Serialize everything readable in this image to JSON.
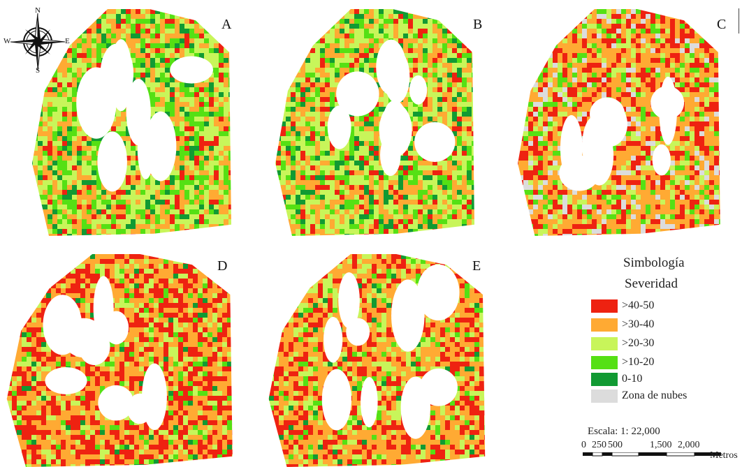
{
  "maps": [
    {
      "id": "A",
      "label": "A",
      "mix": {
        "red": 0.1,
        "orange": 0.3,
        "lime": 0.3,
        "green": 0.2,
        "dark": 0.1,
        "cloud": 0
      }
    },
    {
      "id": "B",
      "label": "B",
      "mix": {
        "red": 0.1,
        "orange": 0.3,
        "lime": 0.35,
        "green": 0.15,
        "dark": 0.1,
        "cloud": 0
      }
    },
    {
      "id": "C",
      "label": "C",
      "mix": {
        "red": 0.25,
        "orange": 0.4,
        "lime": 0.15,
        "green": 0.1,
        "dark": 0.0,
        "cloud": 0.1
      }
    },
    {
      "id": "D",
      "label": "D",
      "mix": {
        "red": 0.35,
        "orange": 0.4,
        "lime": 0.15,
        "green": 0.07,
        "dark": 0.03,
        "cloud": 0
      }
    },
    {
      "id": "E",
      "label": "E",
      "mix": {
        "red": 0.25,
        "orange": 0.45,
        "lime": 0.2,
        "green": 0.07,
        "dark": 0.03,
        "cloud": 0
      }
    }
  ],
  "compass": {
    "n": "N",
    "s": "S",
    "e": "E",
    "w": "W"
  },
  "legend": {
    "title": "Simbología",
    "subtitle": "Severidad",
    "items": [
      {
        "label": ">40-50",
        "color": "#ee2211"
      },
      {
        "label": ">30-40",
        "color": "#ffaa33"
      },
      {
        "label": ">20-30",
        "color": "#c8f55a"
      },
      {
        "label": ">10-20",
        "color": "#55e014"
      },
      {
        "label": "0-10",
        "color": "#119a33"
      },
      {
        "label": "Zona de nubes",
        "color": "#dcdcdc"
      }
    ]
  },
  "scale": {
    "text": "Escala: 1: 22,000",
    "ticks": [
      "0",
      "250",
      "500",
      "1,500",
      "2,000"
    ],
    "unit": "Metros"
  }
}
